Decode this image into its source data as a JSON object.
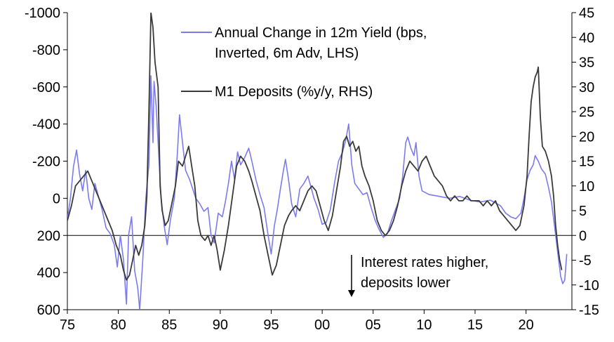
{
  "chart_data": {
    "type": "line",
    "title": "",
    "xlabel": "",
    "x_tick_labels": [
      "75",
      "80",
      "85",
      "90",
      "95",
      "00",
      "05",
      "10",
      "15",
      "20"
    ],
    "x_range": [
      1975,
      2024.5
    ],
    "y_left": {
      "label": "",
      "range": [
        -1000,
        600
      ],
      "inverted": true,
      "ticks": [
        -1000,
        -800,
        -600,
        -400,
        -200,
        0,
        200,
        400,
        600
      ],
      "tick_labels": [
        "-1000",
        "-800",
        "-600",
        "-400",
        "-200",
        "0",
        "200",
        "400",
        "600"
      ]
    },
    "y_right": {
      "label": "",
      "range": [
        -15,
        45
      ],
      "ticks": [
        45,
        40,
        35,
        30,
        25,
        20,
        15,
        10,
        5,
        0,
        -5,
        -10,
        -15
      ],
      "tick_labels": [
        "45",
        "40",
        "35",
        "30",
        "25",
        "20",
        "15",
        "10",
        "5",
        "0",
        "-5",
        "-10",
        "-15"
      ]
    },
    "legend_position": "top-center",
    "series": [
      {
        "name": "Annual Change in 12m Yield (bps, Inverted, 6m Adv, LHS)",
        "axis": "left",
        "color": "#7b7bee",
        "points": [
          [
            1975.0,
            110
          ],
          [
            1975.3,
            0
          ],
          [
            1975.6,
            -170
          ],
          [
            1975.9,
            -260
          ],
          [
            1976.2,
            -130
          ],
          [
            1976.5,
            -40
          ],
          [
            1976.8,
            -150
          ],
          [
            1977.1,
            0
          ],
          [
            1977.4,
            60
          ],
          [
            1977.7,
            -80
          ],
          [
            1978.0,
            -20
          ],
          [
            1978.4,
            60
          ],
          [
            1978.8,
            160
          ],
          [
            1979.2,
            190
          ],
          [
            1979.6,
            250
          ],
          [
            1979.9,
            370
          ],
          [
            1980.2,
            200
          ],
          [
            1980.5,
            330
          ],
          [
            1980.8,
            570
          ],
          [
            1981.0,
            200
          ],
          [
            1981.3,
            100
          ],
          [
            1981.6,
            390
          ],
          [
            1981.9,
            480
          ],
          [
            1982.1,
            600
          ],
          [
            1982.4,
            330
          ],
          [
            1982.7,
            0
          ],
          [
            1983.0,
            -180
          ],
          [
            1983.2,
            -660
          ],
          [
            1983.4,
            -300
          ],
          [
            1983.5,
            -630
          ],
          [
            1983.7,
            -500
          ],
          [
            1983.9,
            -300
          ],
          [
            1984.2,
            0
          ],
          [
            1984.5,
            150
          ],
          [
            1984.8,
            250
          ],
          [
            1985.1,
            120
          ],
          [
            1985.5,
            0
          ],
          [
            1985.8,
            -250
          ],
          [
            1986.0,
            -450
          ],
          [
            1986.3,
            -300
          ],
          [
            1986.6,
            -150
          ],
          [
            1987.0,
            -100
          ],
          [
            1987.3,
            -50
          ],
          [
            1987.6,
            0
          ],
          [
            1988.0,
            30
          ],
          [
            1988.4,
            70
          ],
          [
            1988.8,
            50
          ],
          [
            1989.1,
            200
          ],
          [
            1989.4,
            240
          ],
          [
            1989.8,
            80
          ],
          [
            1990.2,
            100
          ],
          [
            1990.5,
            20
          ],
          [
            1990.8,
            -80
          ],
          [
            1991.1,
            -200
          ],
          [
            1991.4,
            -100
          ],
          [
            1991.7,
            -250
          ],
          [
            1992.0,
            -180
          ],
          [
            1992.4,
            -220
          ],
          [
            1992.8,
            -270
          ],
          [
            1993.1,
            -200
          ],
          [
            1993.5,
            -100
          ],
          [
            1993.9,
            -20
          ],
          [
            1994.3,
            50
          ],
          [
            1994.7,
            200
          ],
          [
            1995.0,
            300
          ],
          [
            1995.3,
            150
          ],
          [
            1995.6,
            60
          ],
          [
            1995.9,
            -50
          ],
          [
            1996.2,
            -150
          ],
          [
            1996.4,
            -210
          ],
          [
            1996.7,
            -100
          ],
          [
            1997.0,
            30
          ],
          [
            1997.4,
            100
          ],
          [
            1997.8,
            -50
          ],
          [
            1998.2,
            -80
          ],
          [
            1998.6,
            -120
          ],
          [
            1998.9,
            -60
          ],
          [
            1999.2,
            0
          ],
          [
            1999.6,
            60
          ],
          [
            2000.0,
            140
          ],
          [
            2000.4,
            130
          ],
          [
            2000.8,
            60
          ],
          [
            2001.2,
            -80
          ],
          [
            2001.6,
            -200
          ],
          [
            2002.0,
            -250
          ],
          [
            2002.3,
            -310
          ],
          [
            2002.6,
            -400
          ],
          [
            2002.9,
            -180
          ],
          [
            2003.2,
            -80
          ],
          [
            2003.6,
            -50
          ],
          [
            2004.0,
            -20
          ],
          [
            2004.4,
            -30
          ],
          [
            2004.8,
            50
          ],
          [
            2005.2,
            120
          ],
          [
            2005.6,
            170
          ],
          [
            2006.0,
            210
          ],
          [
            2006.4,
            190
          ],
          [
            2006.8,
            120
          ],
          [
            2007.2,
            60
          ],
          [
            2007.6,
            0
          ],
          [
            2007.9,
            -120
          ],
          [
            2008.2,
            -300
          ],
          [
            2008.4,
            -330
          ],
          [
            2008.7,
            -270
          ],
          [
            2009.0,
            -230
          ],
          [
            2009.2,
            -300
          ],
          [
            2009.5,
            -120
          ],
          [
            2009.8,
            -40
          ],
          [
            2010.5,
            -20
          ],
          [
            2011.5,
            -10
          ],
          [
            2012.5,
            0
          ],
          [
            2013.5,
            -10
          ],
          [
            2014.5,
            10
          ],
          [
            2015.5,
            20
          ],
          [
            2016.5,
            10
          ],
          [
            2017.5,
            40
          ],
          [
            2018.0,
            80
          ],
          [
            2018.5,
            100
          ],
          [
            2019.0,
            110
          ],
          [
            2019.5,
            80
          ],
          [
            2019.8,
            0
          ],
          [
            2020.1,
            -100
          ],
          [
            2020.4,
            -150
          ],
          [
            2020.7,
            -180
          ],
          [
            2020.9,
            -230
          ],
          [
            2021.2,
            -200
          ],
          [
            2021.5,
            -160
          ],
          [
            2021.9,
            -130
          ],
          [
            2022.2,
            -60
          ],
          [
            2022.5,
            20
          ],
          [
            2022.8,
            150
          ],
          [
            2023.1,
            290
          ],
          [
            2023.4,
            420
          ],
          [
            2023.6,
            460
          ],
          [
            2023.8,
            440
          ],
          [
            2024.0,
            300
          ]
        ]
      },
      {
        "name": "M1 Deposits (%y/y, RHS)",
        "axis": "right",
        "color": "#3a3a3a",
        "points": [
          [
            1975.0,
            3
          ],
          [
            1975.4,
            6
          ],
          [
            1975.8,
            10
          ],
          [
            1976.2,
            11
          ],
          [
            1976.6,
            12
          ],
          [
            1977.0,
            13
          ],
          [
            1977.4,
            11
          ],
          [
            1977.8,
            9
          ],
          [
            1978.2,
            7
          ],
          [
            1978.6,
            5
          ],
          [
            1979.0,
            3
          ],
          [
            1979.4,
            1
          ],
          [
            1979.8,
            -2
          ],
          [
            1980.2,
            -4
          ],
          [
            1980.5,
            -7
          ],
          [
            1980.8,
            -9
          ],
          [
            1981.1,
            -8
          ],
          [
            1981.4,
            -5
          ],
          [
            1981.7,
            -2
          ],
          [
            1982.0,
            -4
          ],
          [
            1982.3,
            -2
          ],
          [
            1982.6,
            2
          ],
          [
            1982.8,
            8
          ],
          [
            1983.0,
            25
          ],
          [
            1983.2,
            45
          ],
          [
            1983.4,
            42
          ],
          [
            1983.6,
            35
          ],
          [
            1983.9,
            30
          ],
          [
            1984.1,
            10
          ],
          [
            1984.3,
            5
          ],
          [
            1984.6,
            2
          ],
          [
            1984.9,
            3
          ],
          [
            1985.2,
            6
          ],
          [
            1985.6,
            10
          ],
          [
            1985.9,
            15
          ],
          [
            1986.3,
            14
          ],
          [
            1986.6,
            16
          ],
          [
            1986.9,
            18
          ],
          [
            1987.2,
            14
          ],
          [
            1987.5,
            10
          ],
          [
            1987.8,
            3
          ],
          [
            1988.1,
            0
          ],
          [
            1988.5,
            -1
          ],
          [
            1988.8,
            0
          ],
          [
            1989.1,
            -2
          ],
          [
            1989.4,
            0
          ],
          [
            1989.7,
            -3
          ],
          [
            1990.0,
            -7
          ],
          [
            1990.4,
            -3
          ],
          [
            1990.8,
            2
          ],
          [
            1991.2,
            8
          ],
          [
            1991.6,
            14
          ],
          [
            1992.0,
            16
          ],
          [
            1992.4,
            15
          ],
          [
            1992.8,
            13
          ],
          [
            1993.1,
            11
          ],
          [
            1993.5,
            8
          ],
          [
            1993.9,
            5
          ],
          [
            1994.3,
            0
          ],
          [
            1994.7,
            -4
          ],
          [
            1995.1,
            -8
          ],
          [
            1995.5,
            -6
          ],
          [
            1995.9,
            -2
          ],
          [
            1996.3,
            2
          ],
          [
            1996.7,
            4
          ],
          [
            1997.0,
            5
          ],
          [
            1997.4,
            6
          ],
          [
            1997.8,
            5
          ],
          [
            1998.2,
            7
          ],
          [
            1998.6,
            9
          ],
          [
            1999.0,
            10
          ],
          [
            1999.4,
            9
          ],
          [
            1999.8,
            6
          ],
          [
            2000.2,
            3
          ],
          [
            2000.6,
            1
          ],
          [
            2001.0,
            4
          ],
          [
            2001.4,
            9
          ],
          [
            2001.8,
            14
          ],
          [
            2002.1,
            19
          ],
          [
            2002.4,
            20
          ],
          [
            2002.7,
            18
          ],
          [
            2003.0,
            19
          ],
          [
            2003.3,
            17
          ],
          [
            2003.6,
            18
          ],
          [
            2003.9,
            14
          ],
          [
            2004.2,
            12
          ],
          [
            2004.6,
            10
          ],
          [
            2005.0,
            7
          ],
          [
            2005.4,
            3
          ],
          [
            2005.8,
            1
          ],
          [
            2006.2,
            0
          ],
          [
            2006.6,
            1
          ],
          [
            2007.0,
            3
          ],
          [
            2007.4,
            6
          ],
          [
            2007.8,
            10
          ],
          [
            2008.2,
            13
          ],
          [
            2008.6,
            15
          ],
          [
            2009.0,
            14
          ],
          [
            2009.4,
            13
          ],
          [
            2009.8,
            15
          ],
          [
            2010.2,
            16
          ],
          [
            2010.6,
            14
          ],
          [
            2011.0,
            12
          ],
          [
            2011.4,
            11
          ],
          [
            2011.8,
            10
          ],
          [
            2012.2,
            8
          ],
          [
            2012.6,
            7
          ],
          [
            2013.0,
            8
          ],
          [
            2013.4,
            7
          ],
          [
            2013.8,
            7
          ],
          [
            2014.2,
            8
          ],
          [
            2014.6,
            7
          ],
          [
            2015.0,
            7
          ],
          [
            2015.4,
            7
          ],
          [
            2015.8,
            6
          ],
          [
            2016.2,
            7
          ],
          [
            2016.6,
            6
          ],
          [
            2017.0,
            7
          ],
          [
            2017.4,
            5
          ],
          [
            2017.8,
            4
          ],
          [
            2018.2,
            3
          ],
          [
            2018.6,
            2
          ],
          [
            2019.0,
            1
          ],
          [
            2019.4,
            2
          ],
          [
            2019.8,
            6
          ],
          [
            2020.1,
            12
          ],
          [
            2020.3,
            20
          ],
          [
            2020.5,
            27
          ],
          [
            2020.7,
            30
          ],
          [
            2020.9,
            32
          ],
          [
            2021.1,
            33
          ],
          [
            2021.2,
            34
          ],
          [
            2021.4,
            24
          ],
          [
            2021.6,
            18
          ],
          [
            2021.9,
            17
          ],
          [
            2022.2,
            15
          ],
          [
            2022.5,
            12
          ],
          [
            2022.7,
            8
          ],
          [
            2022.9,
            2
          ],
          [
            2023.1,
            -2
          ],
          [
            2023.3,
            -5
          ],
          [
            2023.5,
            -7
          ]
        ]
      }
    ],
    "annotation": {
      "line1": "Interest rates higher,",
      "line2": "deposits lower",
      "marker_level_left": 200
    }
  }
}
